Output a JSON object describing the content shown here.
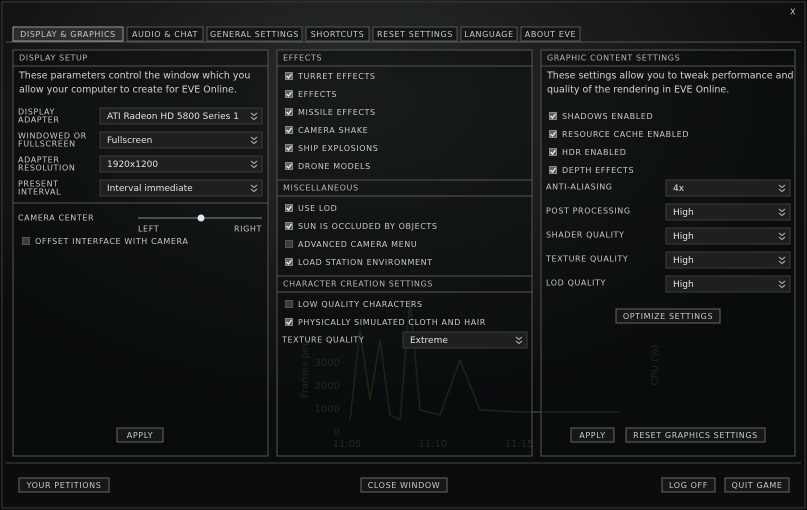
{
  "tabs": [
    "DISPLAY & GRAPHICS",
    "AUDIO & CHAT",
    "GENERAL SETTINGS",
    "SHORTCUTS",
    "RESET SETTINGS",
    "LANGUAGE",
    "ABOUT EVE"
  ],
  "close": "X",
  "display_setup": {
    "title": "DISPLAY SETUP",
    "description": [
      "These parameters control the window which you",
      "allow your computer to create for EVE Online."
    ],
    "fields": [
      {
        "label": [
          "DISPLAY",
          "ADAPTER"
        ],
        "value": "ATI Radeon HD 5800 Series 1"
      },
      {
        "label": [
          "WINDOWED OR",
          "FULLSCREEN"
        ],
        "value": "Fullscreen"
      },
      {
        "label": [
          "ADAPTER",
          "RESOLUTION"
        ],
        "value": "1920x1200"
      },
      {
        "label": [
          "PRESENT",
          "INTERVAL"
        ],
        "value": "Interval immediate"
      }
    ],
    "camera_center": {
      "label": "CAMERA CENTER",
      "left": "LEFT",
      "right": "RIGHT"
    },
    "checkboxes": [
      {
        "label": "OFFSET INTERFACE WITH CAMERA",
        "checked": false
      }
    ],
    "apply": "APPLY"
  },
  "effects": {
    "title": "EFFECTS",
    "items": [
      {
        "label": "TURRET EFFECTS",
        "checked": true
      },
      {
        "label": "EFFECTS",
        "checked": true
      },
      {
        "label": "MISSILE EFFECTS",
        "checked": true
      },
      {
        "label": "CAMERA SHAKE",
        "checked": true
      },
      {
        "label": "SHIP EXPLOSIONS",
        "checked": true
      },
      {
        "label": "DRONE MODELS",
        "checked": true
      }
    ]
  },
  "miscellaneous": {
    "title": "MISCELLANEOUS",
    "items": [
      {
        "label": "USE LOD",
        "checked": true
      },
      {
        "label": "SUN IS OCCLUDED BY OBJECTS",
        "checked": true
      },
      {
        "label": "ADVANCED CAMERA MENU",
        "checked": false
      },
      {
        "label": "LOAD STATION ENVIRONMENT",
        "checked": true
      }
    ]
  },
  "character_creation": {
    "title": "CHARACTER CREATION SETTINGS",
    "items": [
      {
        "label": "LOW QUALITY CHARACTERS",
        "checked": false
      },
      {
        "label": "PHYSICALLY SIMULATED CLOTH AND HAIR",
        "checked": true
      }
    ],
    "texture_quality": {
      "label": "TEXTURE QUALITY",
      "value": "Extreme"
    }
  },
  "graphic_content": {
    "title": "GRAPHIC CONTENT SETTINGS",
    "description": [
      "These settings allow you to tweak performance and",
      "quality of the rendering in EVE Online."
    ],
    "items": [
      {
        "label": "SHADOWS ENABLED",
        "checked": true
      },
      {
        "label": "RESOURCE CACHE ENABLED",
        "checked": true
      },
      {
        "label": "HDR ENABLED",
        "checked": true
      },
      {
        "label": "DEPTH EFFECTS",
        "checked": true
      }
    ],
    "fields": [
      {
        "label": "ANTI-ALIASING",
        "value": "4x"
      },
      {
        "label": "POST PROCESSING",
        "value": "High"
      },
      {
        "label": "SHADER QUALITY",
        "value": "High"
      },
      {
        "label": "TEXTURE QUALITY",
        "value": "High"
      },
      {
        "label": "LOD QUALITY",
        "value": "High"
      }
    ],
    "optimize": "OPTIMIZE SETTINGS",
    "apply": "APPLY",
    "reset": "RESET GRAPHICS SETTINGS"
  },
  "footer": {
    "petitions": "YOUR PETITIONS",
    "close_window": "CLOSE WINDOW",
    "log_off": "LOG OFF",
    "quit_game": "QUIT GAME"
  },
  "background_chart": {
    "y_label": "Frames per",
    "y2_label": "CPU (%)",
    "yticks": [
      "3000",
      "2000",
      "1000",
      "0"
    ],
    "xticks": [
      "11:05",
      "11:10",
      "11:15"
    ]
  }
}
